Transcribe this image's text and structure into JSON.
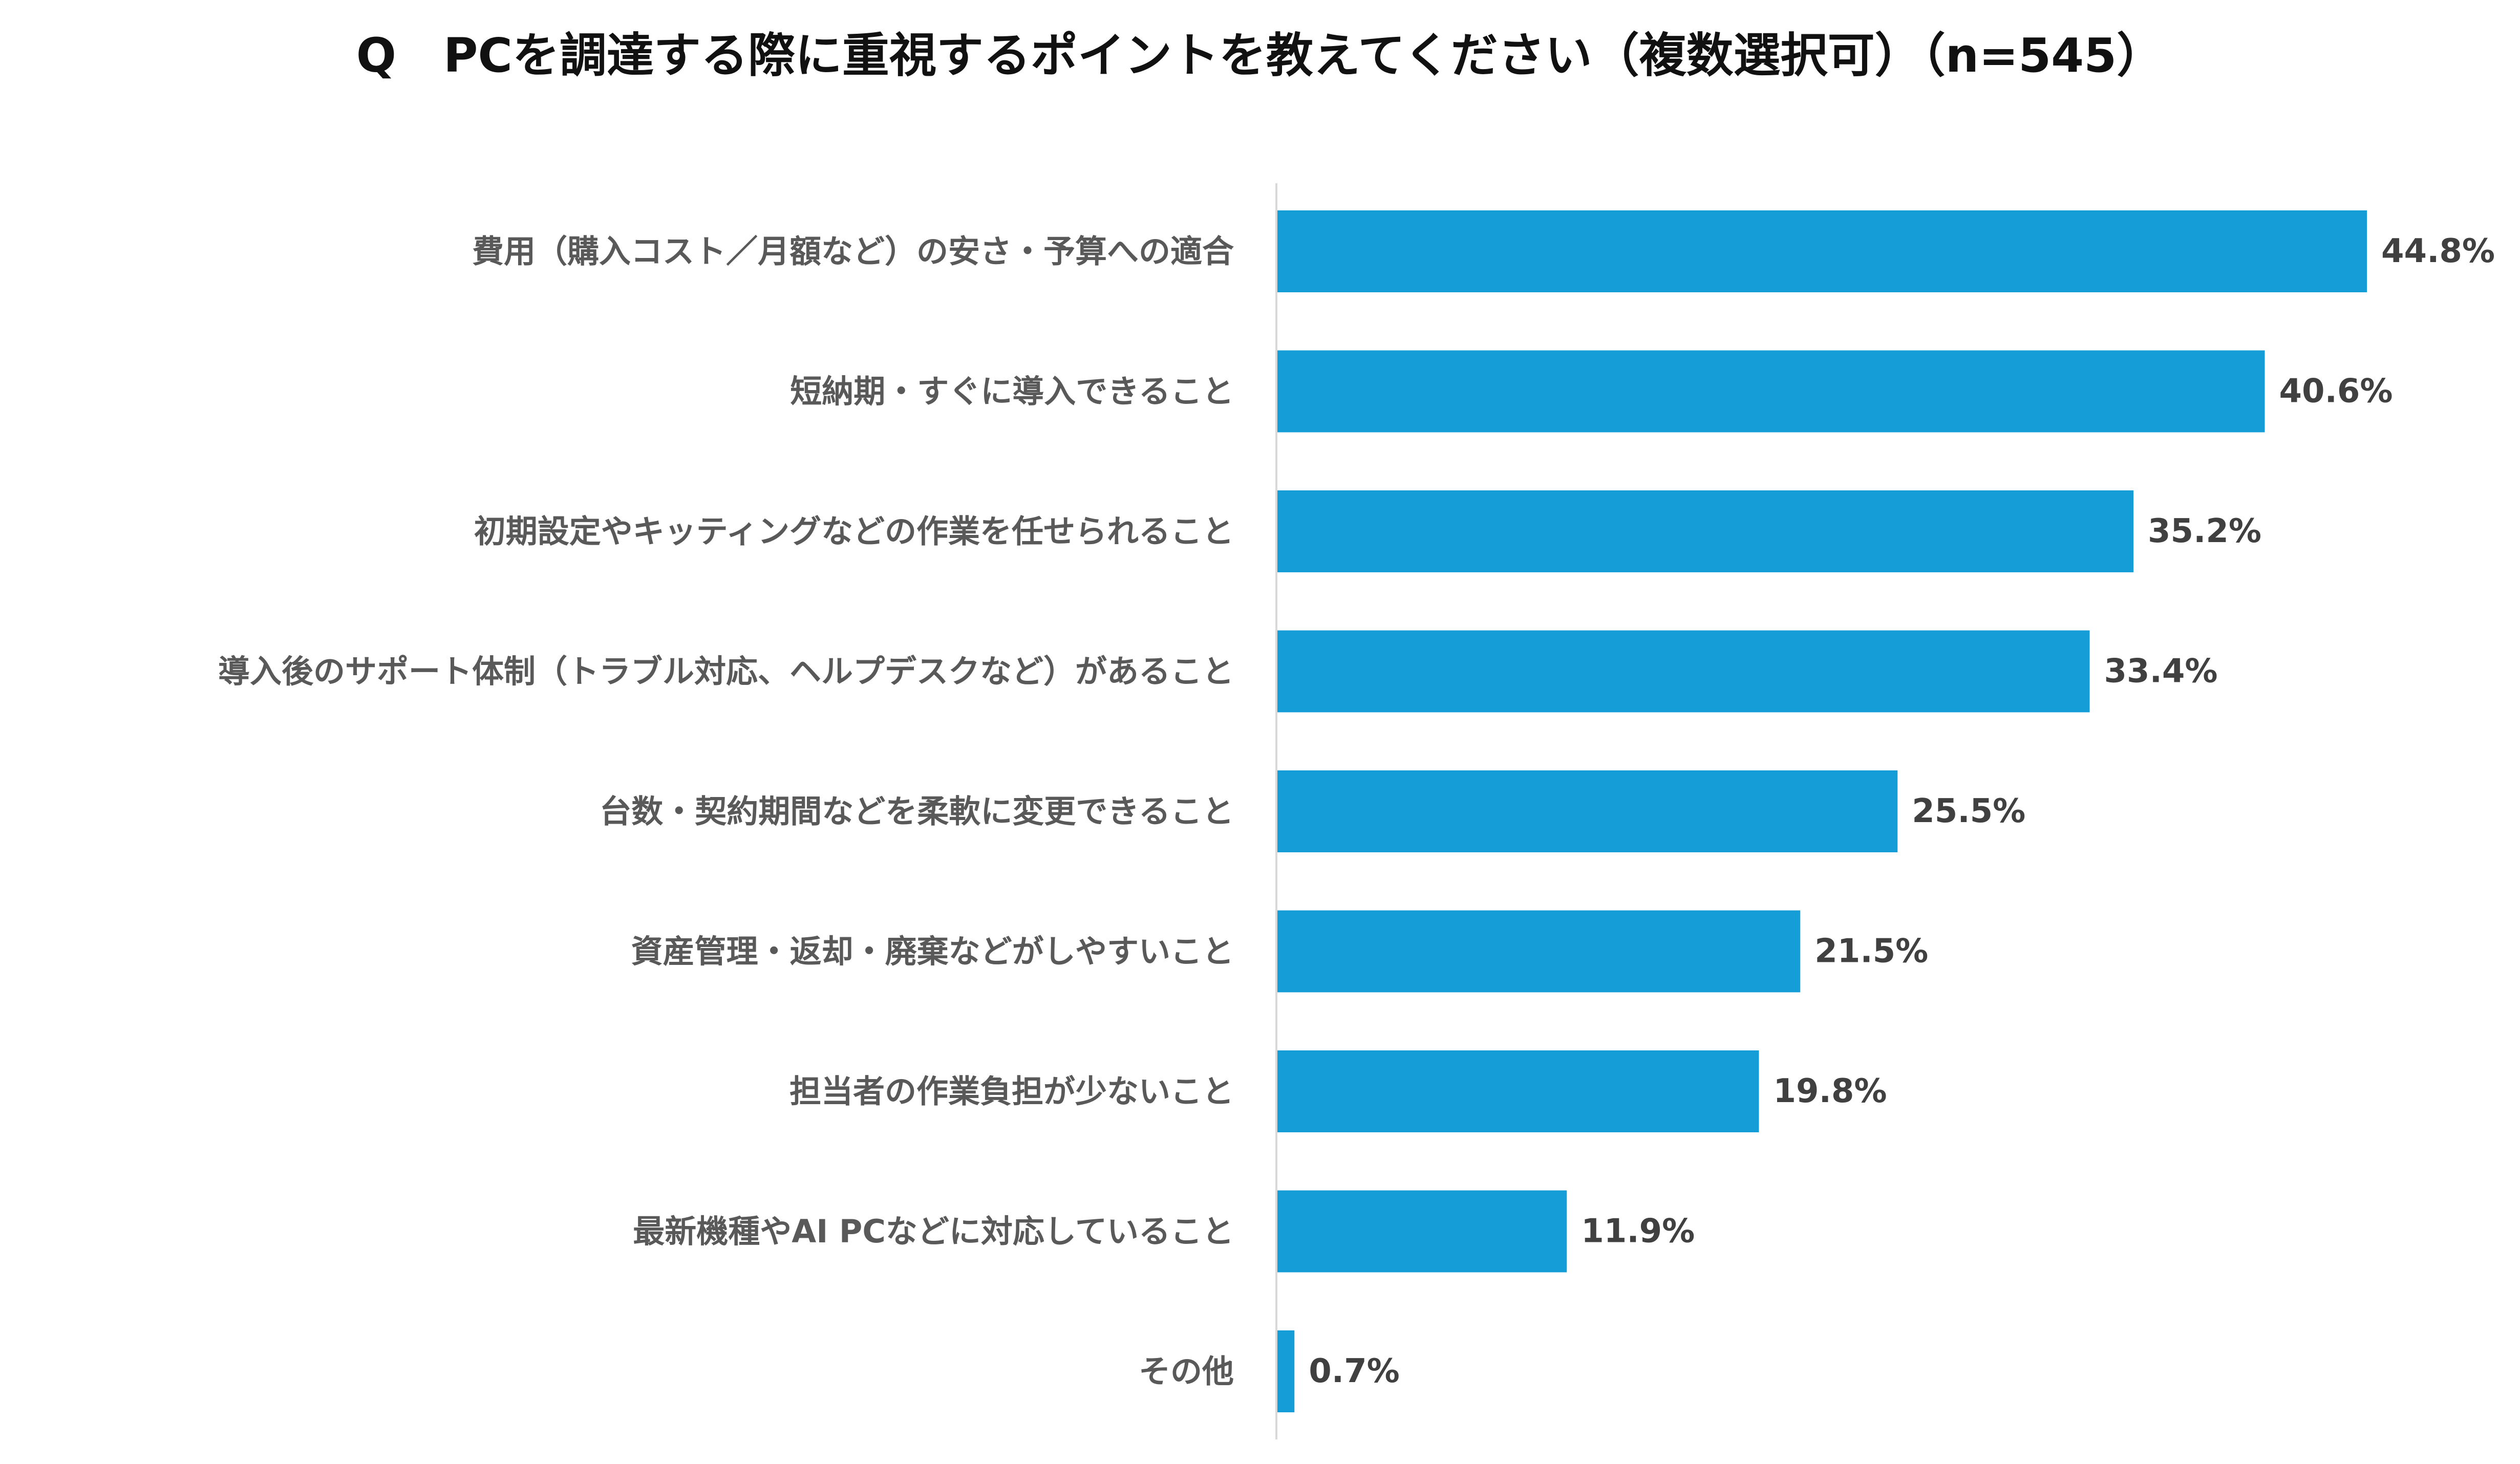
{
  "chart_data": {
    "type": "bar",
    "orientation": "horizontal",
    "title": "Q　PCを調達する際に重視するポイントを教えてください（複数選択可）（n=545）",
    "categories": [
      "費用（購入コスト／月額など）の安さ・予算への適合",
      "短納期・すぐに導入できること",
      "初期設定やキッティングなどの作業を任せられること",
      "導入後のサポート体制（トラブル対応、ヘルプデスクなど）があること",
      "台数・契約期間などを柔軟に変更できること",
      "資産管理・返却・廃棄などがしやすいこと",
      "担当者の作業負担が少ないこと",
      "最新機種やAI PCなどに対応していること",
      "その他"
    ],
    "values": [
      44.8,
      40.6,
      35.2,
      33.4,
      25.5,
      21.5,
      19.8,
      11.9,
      0.7
    ],
    "value_labels": [
      "44.8%",
      "40.6%",
      "35.2%",
      "33.4%",
      "25.5%",
      "21.5%",
      "19.8%",
      "11.9%",
      "0.7%"
    ],
    "xlabel": "",
    "ylabel": "",
    "xlim": [
      0,
      50
    ],
    "grid": false,
    "legend": "none",
    "colors": {
      "bar": "#149dd6",
      "axis": "#d9d9d9",
      "title": "#111111",
      "category_text": "#595959",
      "value_text": "#404040"
    }
  }
}
